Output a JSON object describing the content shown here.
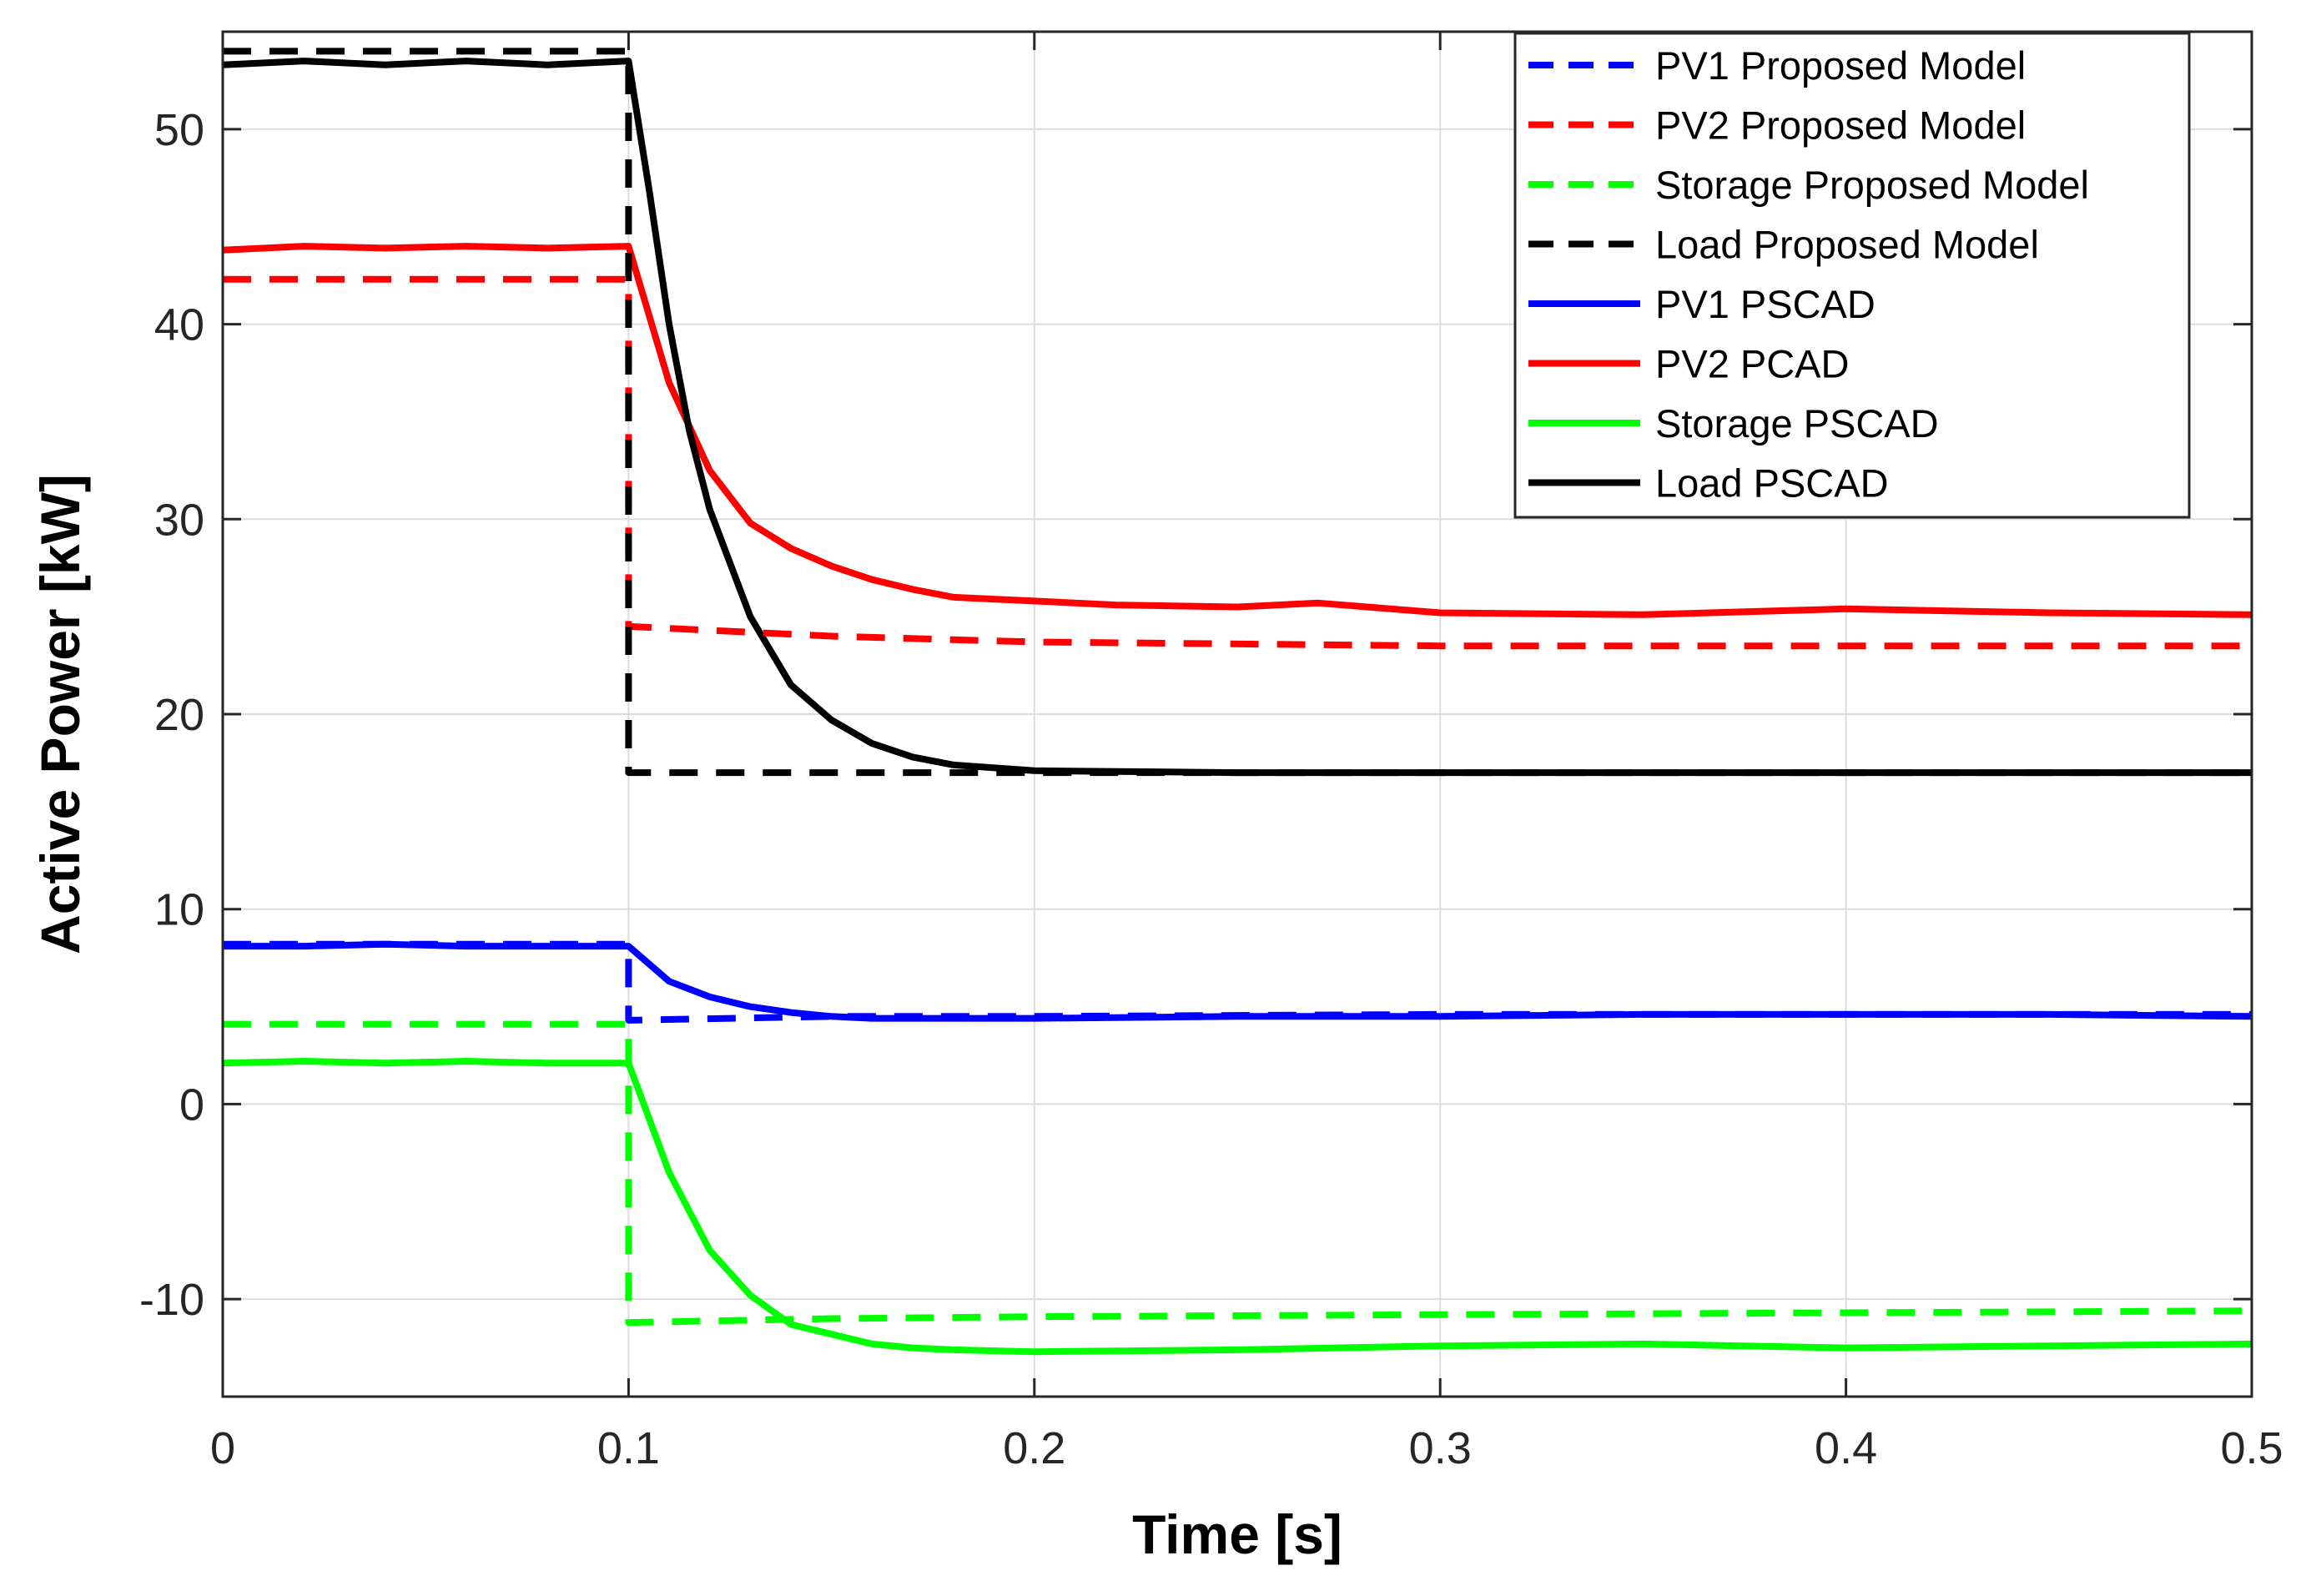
{
  "chart_data": {
    "type": "line",
    "xlabel": "Time [s]",
    "ylabel": "Active Power [kW]",
    "xlim": [
      0,
      0.5
    ],
    "ylim": [
      -15,
      55
    ],
    "xticks": [
      0,
      0.1,
      0.2,
      0.3,
      0.4,
      0.5
    ],
    "yticks": [
      -10,
      0,
      10,
      20,
      30,
      40,
      50
    ],
    "xtick_labels": [
      "0",
      "0.1",
      "0.2",
      "0.3",
      "0.4",
      "0.5"
    ],
    "ytick_labels": [
      "-10",
      "0",
      "10",
      "20",
      "30",
      "40",
      "50"
    ],
    "grid": true,
    "legend_position": "top-right",
    "series": [
      {
        "name": "PV1 Proposed Model",
        "color": "#0000ff",
        "style": "dashed",
        "x": [
          0,
          0.1,
          0.1,
          0.15,
          0.2,
          0.3,
          0.4,
          0.5
        ],
        "y": [
          8.2,
          8.2,
          4.3,
          4.5,
          4.5,
          4.6,
          4.6,
          4.6
        ]
      },
      {
        "name": "PV2 Proposed Model",
        "color": "#ff0000",
        "style": "dashed",
        "x": [
          0,
          0.1,
          0.1,
          0.15,
          0.2,
          0.3,
          0.4,
          0.5
        ],
        "y": [
          42.3,
          42.3,
          24.5,
          24.0,
          23.7,
          23.5,
          23.5,
          23.5
        ]
      },
      {
        "name": "Storage Proposed Model",
        "color": "#00ff00",
        "style": "dashed",
        "x": [
          0,
          0.1,
          0.1,
          0.15,
          0.2,
          0.3,
          0.4,
          0.5
        ],
        "y": [
          4.1,
          4.1,
          -11.2,
          -11.0,
          -10.9,
          -10.8,
          -10.7,
          -10.6
        ]
      },
      {
        "name": "Load Proposed Model",
        "color": "#000000",
        "style": "dashed",
        "x": [
          0,
          0.1,
          0.1,
          0.11,
          0.2,
          0.3,
          0.4,
          0.5
        ],
        "y": [
          54.0,
          54.0,
          17.0,
          17.0,
          17.0,
          17.0,
          17.0,
          17.0
        ]
      },
      {
        "name": "PV1 PSCAD",
        "color": "#0000ff",
        "style": "solid",
        "x": [
          0,
          0.02,
          0.04,
          0.06,
          0.08,
          0.1,
          0.11,
          0.12,
          0.13,
          0.14,
          0.15,
          0.16,
          0.17,
          0.18,
          0.2,
          0.25,
          0.3,
          0.35,
          0.4,
          0.45,
          0.5
        ],
        "y": [
          8.1,
          8.1,
          8.2,
          8.1,
          8.1,
          8.1,
          6.3,
          5.5,
          5.0,
          4.7,
          4.5,
          4.4,
          4.4,
          4.4,
          4.4,
          4.5,
          4.5,
          4.6,
          4.6,
          4.6,
          4.5
        ]
      },
      {
        "name": "PV2 PCAD",
        "color": "#ff0000",
        "style": "solid",
        "x": [
          0,
          0.02,
          0.04,
          0.06,
          0.08,
          0.1,
          0.105,
          0.11,
          0.12,
          0.13,
          0.14,
          0.15,
          0.16,
          0.17,
          0.18,
          0.2,
          0.22,
          0.25,
          0.27,
          0.3,
          0.35,
          0.4,
          0.45,
          0.5
        ],
        "y": [
          43.8,
          44.0,
          43.9,
          44.0,
          43.9,
          44.0,
          40.5,
          37.0,
          32.5,
          29.8,
          28.5,
          27.6,
          26.9,
          26.4,
          26.0,
          25.8,
          25.6,
          25.5,
          25.7,
          25.2,
          25.1,
          25.4,
          25.2,
          25.1
        ]
      },
      {
        "name": "Storage PSCAD",
        "color": "#00ff00",
        "style": "solid",
        "x": [
          0,
          0.02,
          0.04,
          0.06,
          0.08,
          0.1,
          0.11,
          0.12,
          0.13,
          0.14,
          0.15,
          0.16,
          0.17,
          0.18,
          0.2,
          0.25,
          0.3,
          0.35,
          0.4,
          0.45,
          0.5
        ],
        "y": [
          2.1,
          2.2,
          2.1,
          2.2,
          2.1,
          2.1,
          -3.5,
          -7.5,
          -9.8,
          -11.3,
          -11.8,
          -12.3,
          -12.5,
          -12.6,
          -12.7,
          -12.6,
          -12.4,
          -12.3,
          -12.5,
          -12.4,
          -12.3
        ]
      },
      {
        "name": "Load PSCAD",
        "color": "#000000",
        "style": "solid",
        "x": [
          0,
          0.02,
          0.04,
          0.06,
          0.08,
          0.1,
          0.105,
          0.11,
          0.115,
          0.12,
          0.13,
          0.14,
          0.15,
          0.16,
          0.17,
          0.18,
          0.2,
          0.25,
          0.3,
          0.35,
          0.4,
          0.45,
          0.5
        ],
        "y": [
          53.3,
          53.5,
          53.3,
          53.5,
          53.3,
          53.5,
          47.0,
          40.0,
          34.5,
          30.5,
          25.0,
          21.5,
          19.7,
          18.5,
          17.8,
          17.4,
          17.1,
          17.0,
          17.0,
          17.0,
          17.0,
          17.0,
          17.0
        ]
      }
    ]
  }
}
